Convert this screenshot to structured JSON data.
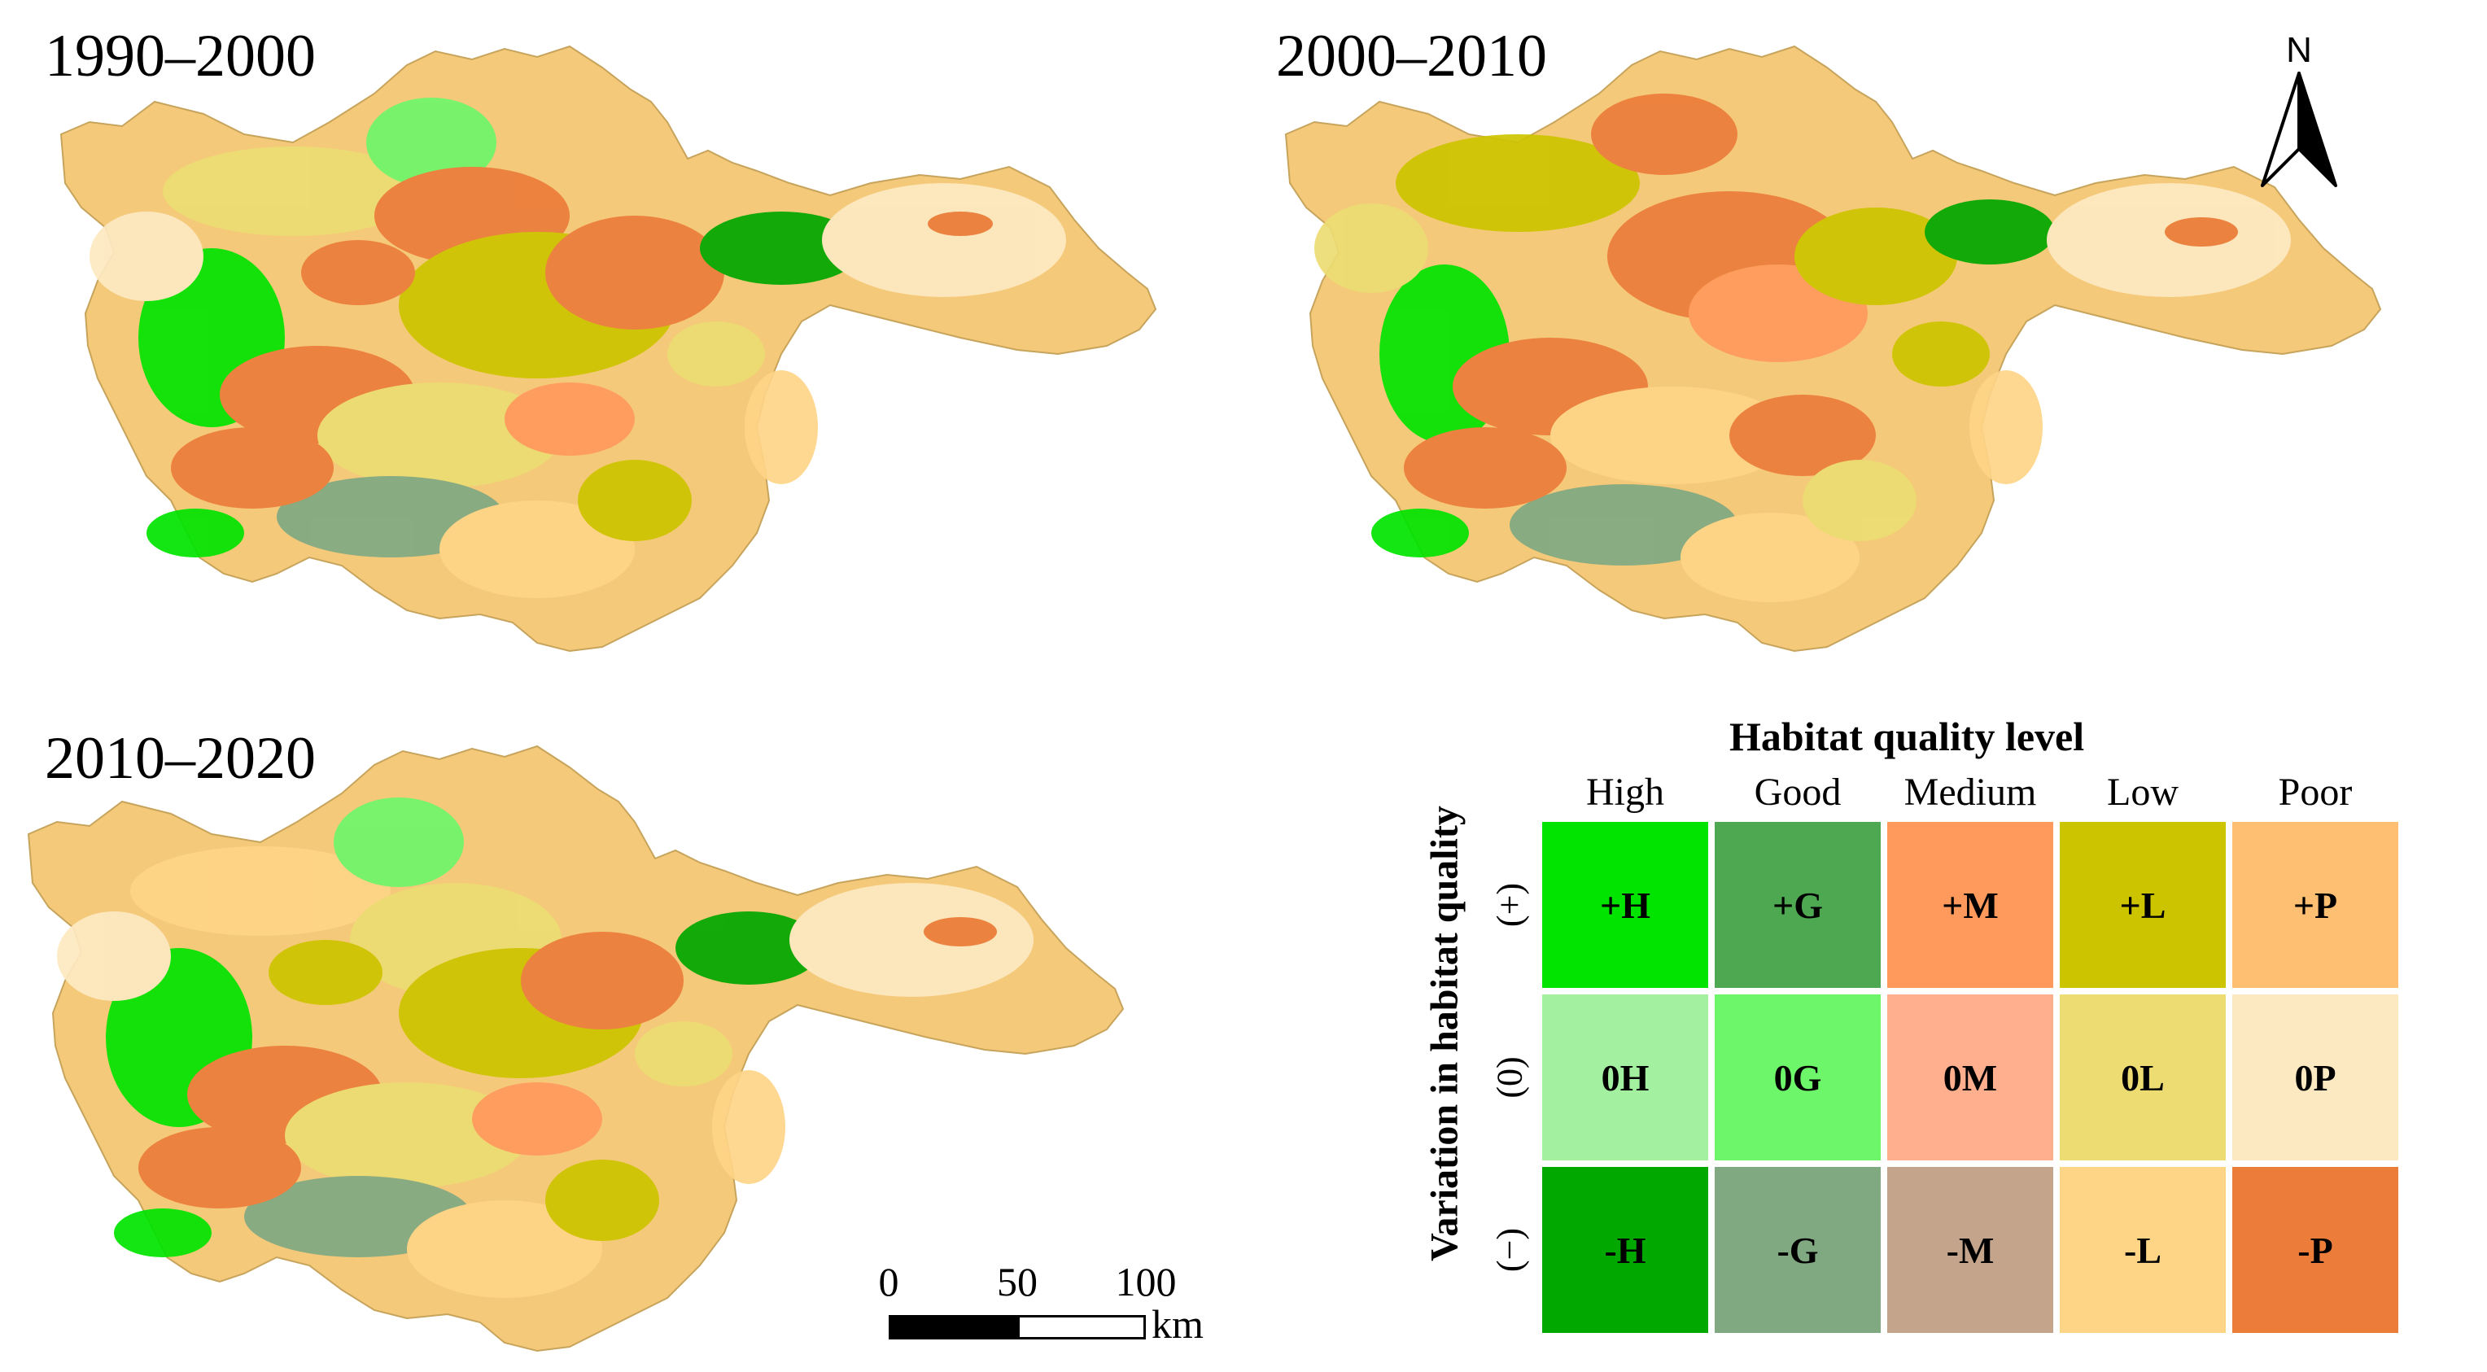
{
  "panels": [
    {
      "title": "1990–2000"
    },
    {
      "title": "2000–2010"
    },
    {
      "title": "2010–2020"
    }
  ],
  "north_arrow": {
    "label": "N"
  },
  "scale_bar": {
    "ticks": [
      "0",
      "50",
      "100"
    ],
    "unit": "km"
  },
  "legend": {
    "title": "Habitat quality level",
    "axis_label": "Variation in habitat quality",
    "levels": [
      "High",
      "Good",
      "Medium",
      "Low",
      "Poor"
    ],
    "rows": [
      {
        "sign": "(+)",
        "cells": [
          {
            "code": "+H",
            "color": "#00e400"
          },
          {
            "code": "+G",
            "color": "#4ea852"
          },
          {
            "code": "+M",
            "color": "#ff9a5c"
          },
          {
            "code": "+L",
            "color": "#cdc400"
          },
          {
            "code": "+P",
            "color": "#ffbf73"
          }
        ]
      },
      {
        "sign": "(0)",
        "cells": [
          {
            "code": "0H",
            "color": "#a3f0a0"
          },
          {
            "code": "0G",
            "color": "#6ef66a"
          },
          {
            "code": "0M",
            "color": "#ffae8e"
          },
          {
            "code": "0L",
            "color": "#ecdc72"
          },
          {
            "code": "0P",
            "color": "#fde9c1"
          }
        ]
      },
      {
        "sign": "(−)",
        "cells": [
          {
            "code": "-H",
            "color": "#00a800"
          },
          {
            "code": "-G",
            "color": "#80a982"
          },
          {
            "code": "-M",
            "color": "#c4a58c"
          },
          {
            "code": "-L",
            "color": "#fed487"
          },
          {
            "code": "-P",
            "color": "#ec7c3a"
          }
        ]
      }
    ]
  }
}
